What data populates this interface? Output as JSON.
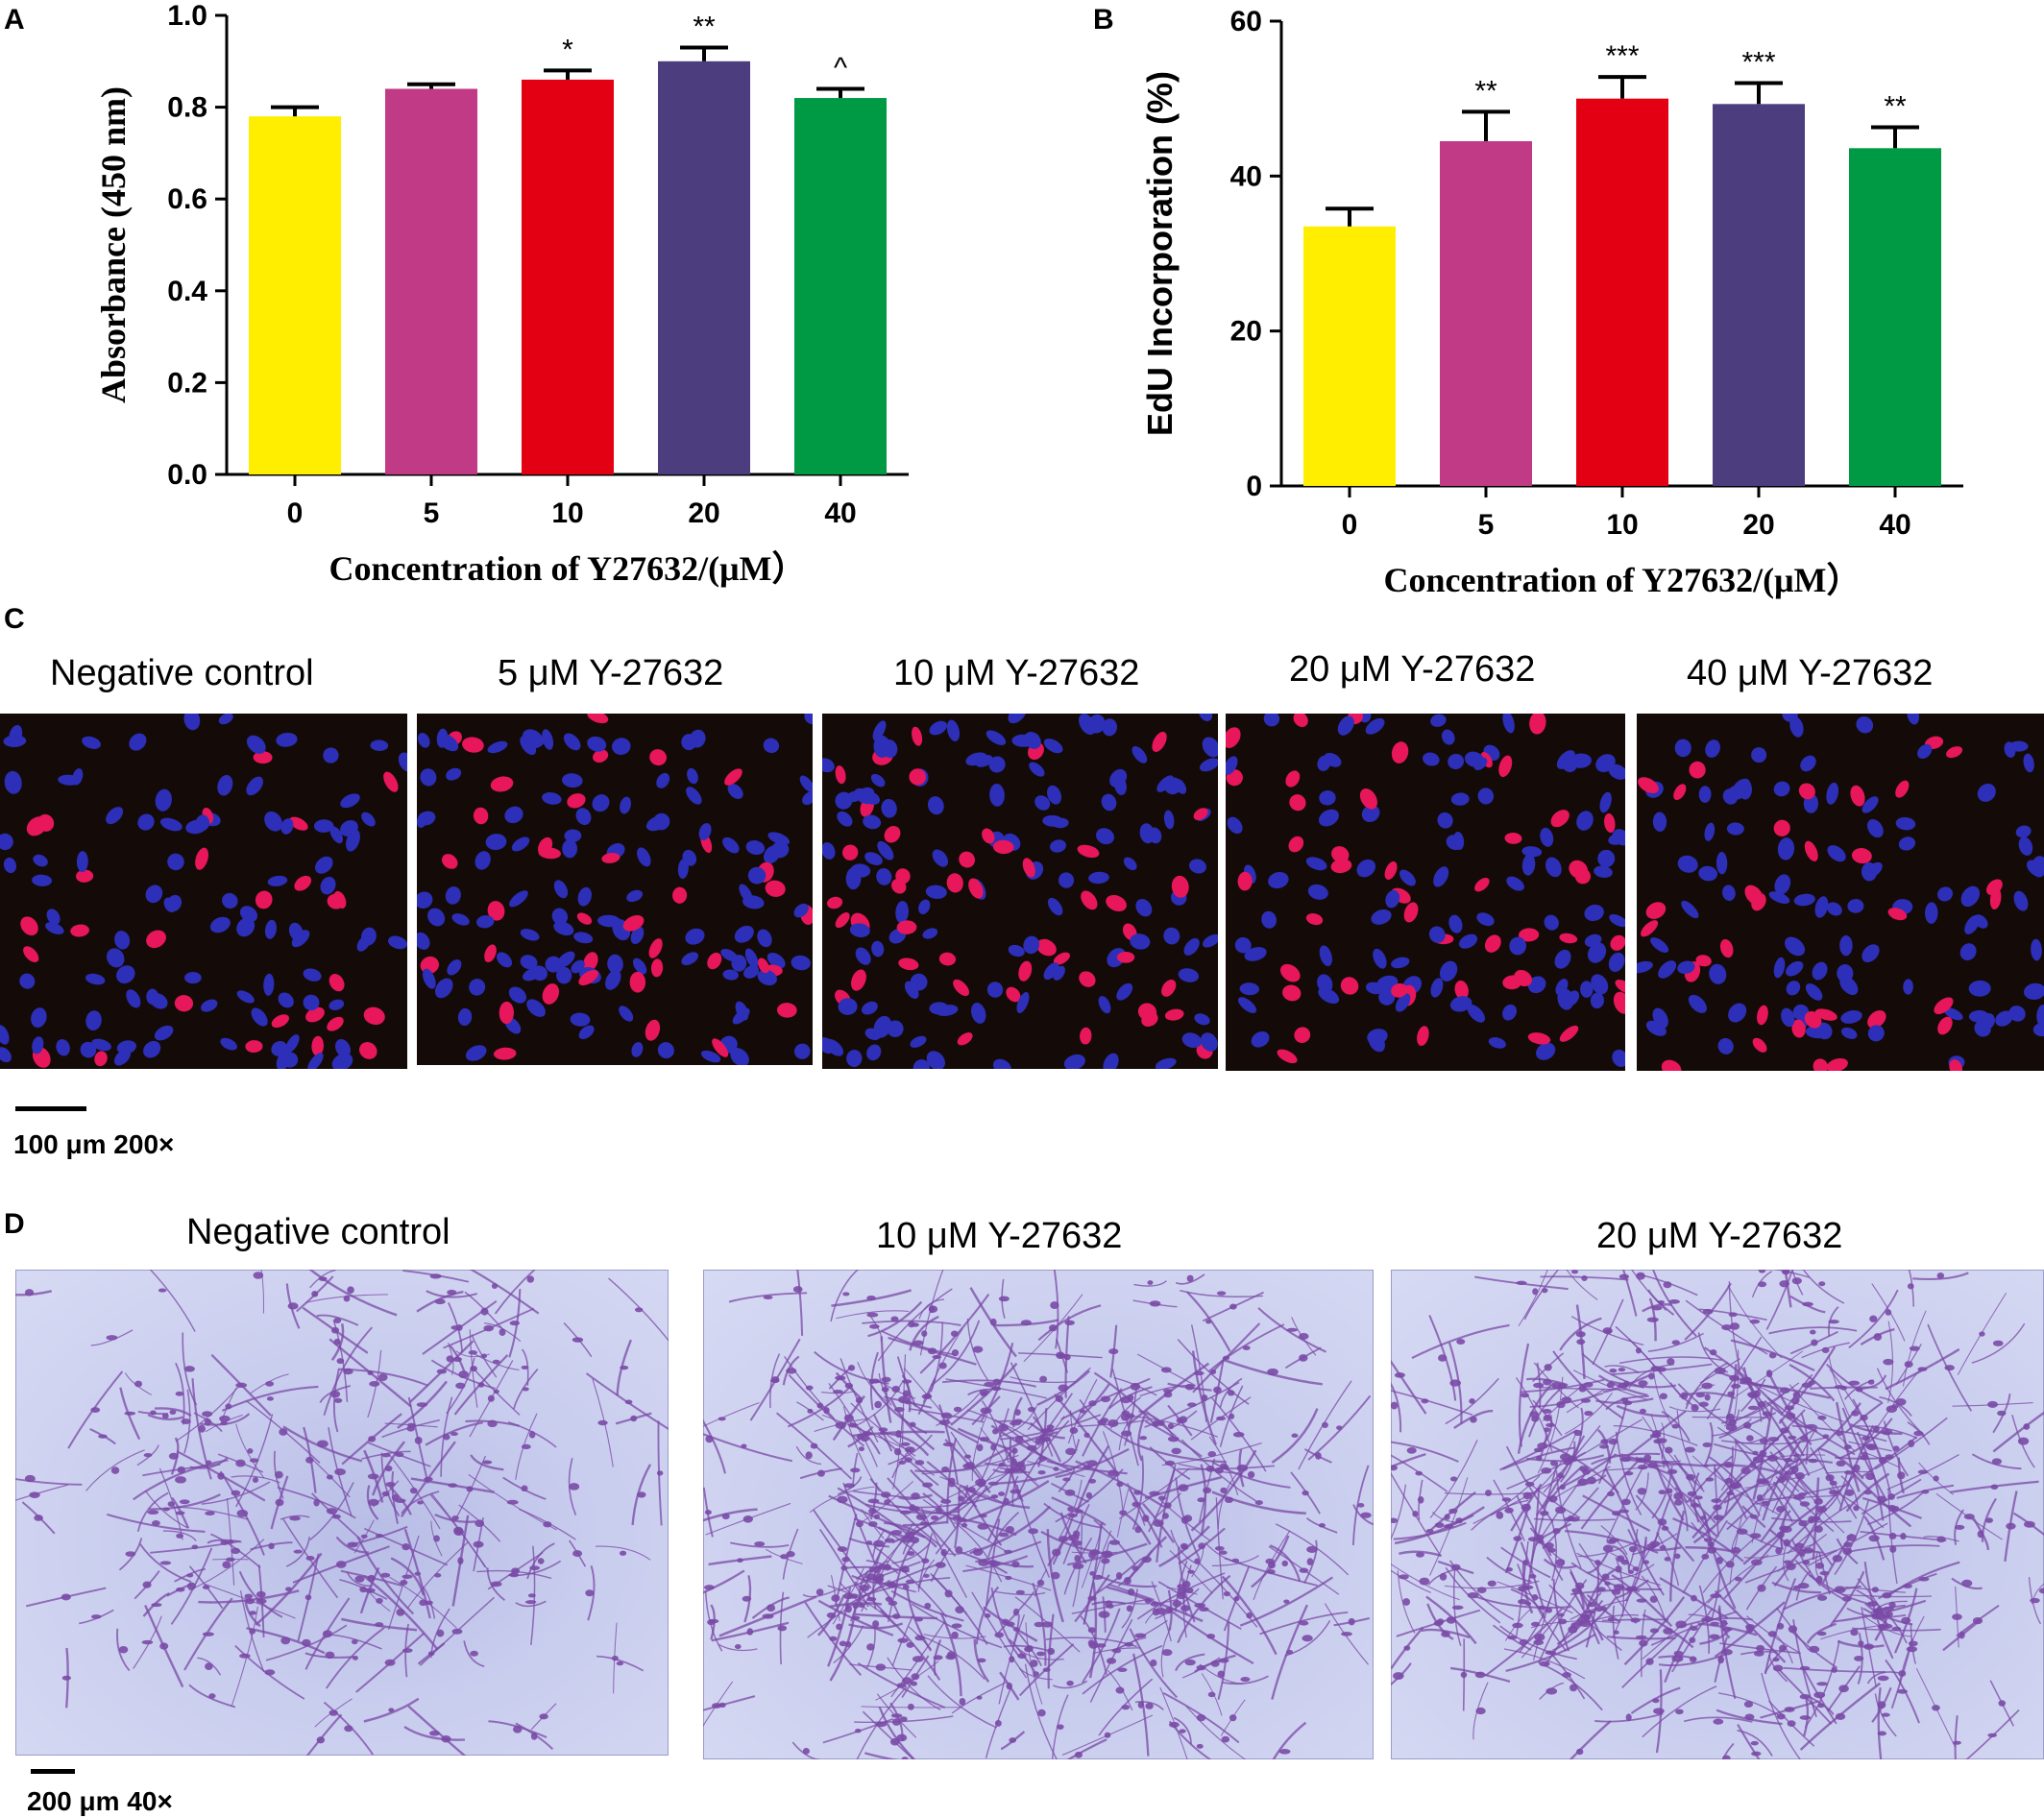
{
  "panels": {
    "a": {
      "letter": "A"
    },
    "b": {
      "letter": "B"
    },
    "c": {
      "letter": "C",
      "titles": [
        "Negative control",
        "5 μM Y-27632",
        "10 μM Y-27632",
        "20 μM Y-27632",
        "40 μM Y-27632"
      ],
      "scale_label": "100 μm 200×"
    },
    "d": {
      "letter": "D",
      "titles": [
        "Negative control",
        "10 μM Y-27632",
        "20 μM Y-27632"
      ],
      "scale_label": "200 μm  40×"
    }
  },
  "colors": {
    "yellow": "#ffee00",
    "magenta": "#c03a86",
    "red": "#e30012",
    "purple": "#4c3d7f",
    "green": "#009a44",
    "nucleus_blue": "#2d2fb8",
    "nucleus_red": "#e8165a",
    "stain_purple": "#7a4aa6"
  },
  "chart_data": [
    {
      "type": "bar",
      "categories": [
        "0",
        "5",
        "10",
        "20",
        "40"
      ],
      "values": [
        0.78,
        0.84,
        0.86,
        0.9,
        0.82
      ],
      "errors": [
        0.02,
        0.01,
        0.02,
        0.03,
        0.02
      ],
      "annotations": [
        "",
        "",
        "*",
        "**",
        "^"
      ],
      "xlabel": "Concentration of Y27632/(μM）",
      "ylabel": "Absorbance (450 nm)",
      "ylim": [
        0,
        1.0
      ],
      "yticks": [
        "0.0",
        "0.2",
        "0.4",
        "0.6",
        "0.8",
        "1.0"
      ],
      "ytick_values": [
        0,
        0.2,
        0.4,
        0.6,
        0.8,
        1.0
      ],
      "grid": false
    },
    {
      "type": "bar",
      "categories": [
        "0",
        "5",
        "10",
        "20",
        "40"
      ],
      "values": [
        33.5,
        44.5,
        50,
        49.3,
        43.6
      ],
      "errors": [
        2.3,
        3.8,
        2.8,
        2.7,
        2.7
      ],
      "annotations": [
        "",
        "**",
        "***",
        "***",
        "**"
      ],
      "xlabel": "Concentration of Y27632/(μM）",
      "ylabel": "EdU Incorporation (%)",
      "ylim": [
        0,
        60
      ],
      "yticks": [
        "0",
        "20",
        "40",
        "60"
      ],
      "ytick_values": [
        0,
        20,
        40,
        60
      ],
      "grid": false
    }
  ]
}
